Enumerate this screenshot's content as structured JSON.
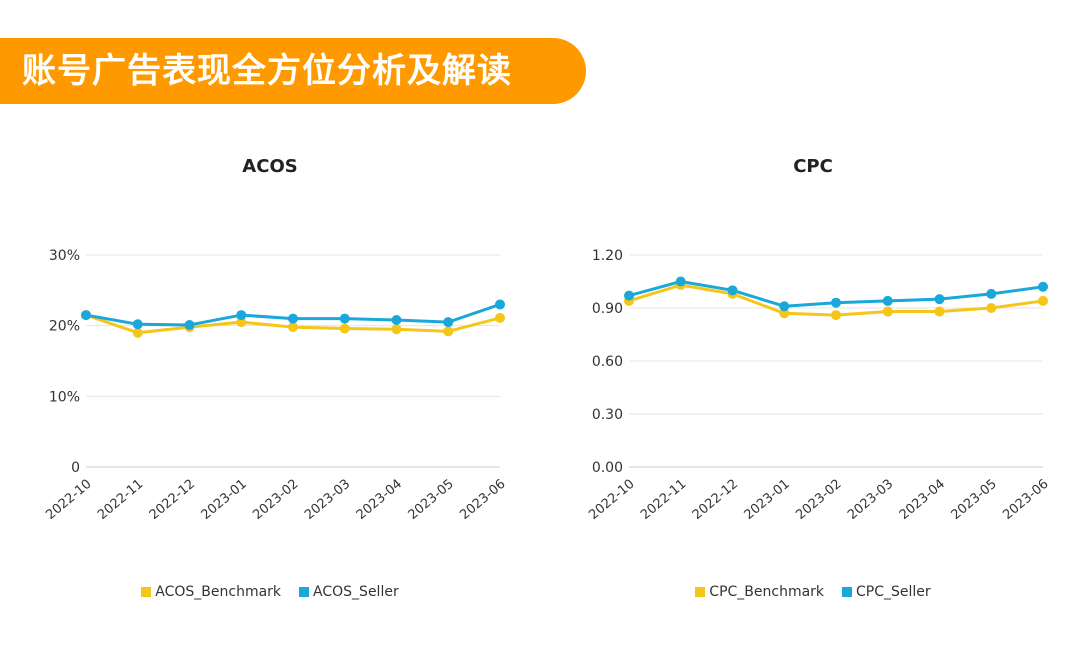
{
  "header": {
    "title": "账号广告表现全方位分析及解读"
  },
  "colors": {
    "banner": "#ff9900",
    "benchmark": "#f5c518",
    "seller": "#1aa7d9",
    "grid": "#e4e4e4"
  },
  "chart_data": [
    {
      "type": "line",
      "title": "ACOS",
      "categories": [
        "2022-10",
        "2022-11",
        "2022-12",
        "2023-01",
        "2023-02",
        "2023-03",
        "2023-04",
        "2023-05",
        "2023-06"
      ],
      "ylim": [
        0,
        0.3
      ],
      "yticks": [
        0,
        0.1,
        0.2,
        0.3
      ],
      "ytick_labels": [
        "0",
        "10%",
        "20%",
        "30%"
      ],
      "grid": true,
      "legend_position": "bottom",
      "series": [
        {
          "name": "ACOS_Benchmark",
          "color": "#f5c518",
          "values": [
            0.215,
            0.19,
            0.198,
            0.205,
            0.198,
            0.196,
            0.195,
            0.192,
            0.211
          ]
        },
        {
          "name": "ACOS_Seller",
          "color": "#1aa7d9",
          "values": [
            0.215,
            0.202,
            0.201,
            0.215,
            0.21,
            0.21,
            0.208,
            0.205,
            0.23
          ]
        }
      ]
    },
    {
      "type": "line",
      "title": "CPC",
      "categories": [
        "2022-10",
        "2022-11",
        "2022-12",
        "2023-01",
        "2023-02",
        "2023-03",
        "2023-04",
        "2023-05",
        "2023-06"
      ],
      "ylim": [
        0,
        1.2
      ],
      "yticks": [
        0,
        0.3,
        0.6,
        0.9,
        1.2
      ],
      "ytick_labels": [
        "0.00",
        "0.30",
        "0.60",
        "0.90",
        "1.20"
      ],
      "grid": true,
      "legend_position": "bottom",
      "series": [
        {
          "name": "CPC_Benchmark",
          "color": "#f5c518",
          "values": [
            0.94,
            1.03,
            0.98,
            0.87,
            0.86,
            0.88,
            0.88,
            0.9,
            0.94
          ]
        },
        {
          "name": "CPC_Seller",
          "color": "#1aa7d9",
          "values": [
            0.97,
            1.05,
            1.0,
            0.91,
            0.93,
            0.94,
            0.95,
            0.98,
            1.02
          ]
        }
      ]
    }
  ]
}
